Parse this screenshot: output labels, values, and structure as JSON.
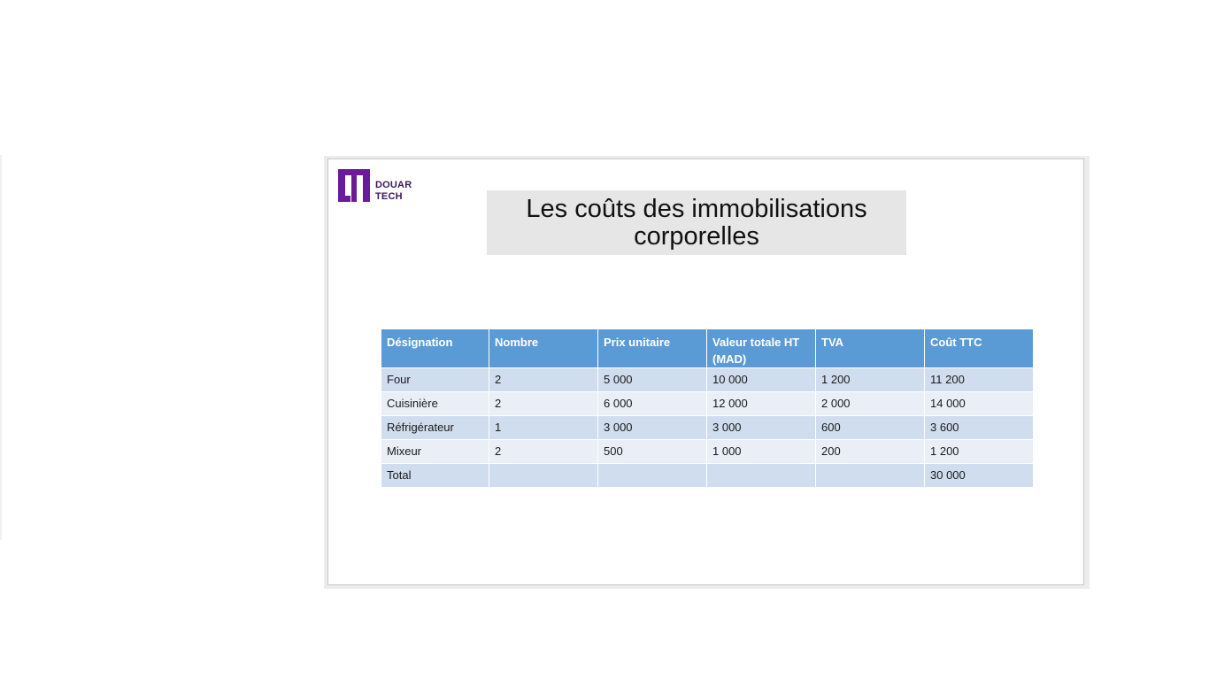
{
  "slide": {
    "logo": {
      "line1": "DOUAR",
      "line2": "TECH",
      "color": "#6a1b9a"
    },
    "title": "Les coûts des immobilisations corporelles",
    "table": {
      "headers": [
        "Désignation",
        "Nombre",
        "Prix unitaire",
        "Valeur totale HT (MAD)",
        "TVA",
        "Coût TTC"
      ],
      "rows": [
        [
          "Four",
          "2",
          "5 000",
          "10 000",
          "1 200",
          "11 200"
        ],
        [
          "Cuisinière",
          "2",
          "6 000",
          "12 000",
          "2 000",
          "14 000"
        ],
        [
          "Réfrigérateur",
          "1",
          "3 000",
          "3 000",
          "600",
          "3 600"
        ],
        [
          "Mixeur",
          "2",
          "500",
          "1 000",
          "200",
          "1 200"
        ],
        [
          "Total",
          "",
          "",
          "",
          "",
          "30 000"
        ]
      ]
    },
    "colors": {
      "header_bg": "#5b9bd5",
      "row_dark": "#d0ddee",
      "row_light": "#e9eef7",
      "title_bg": "#e6e6e6"
    }
  }
}
